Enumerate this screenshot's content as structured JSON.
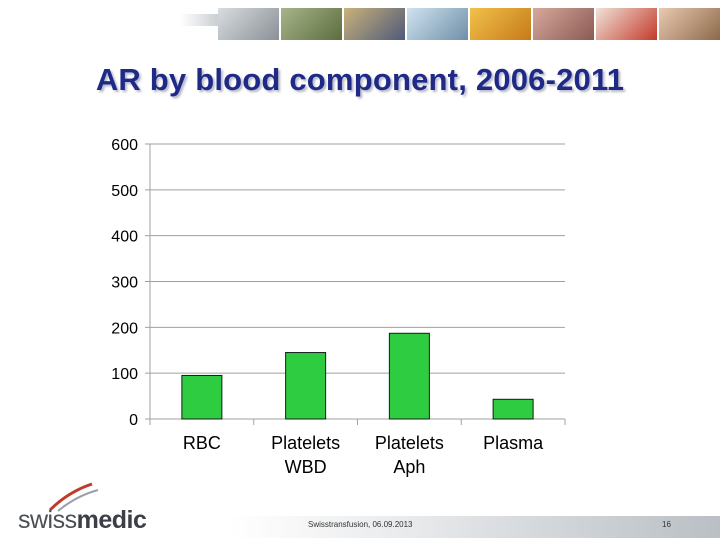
{
  "slide": {
    "title": "AR by blood component, 2006-2011",
    "footer": "Swisstransfusion, 06.09.2013",
    "page_number": "16",
    "logo_text_light": "swiss",
    "logo_text_bold": "medic"
  },
  "colors": {
    "title": "#1f2a86",
    "bar": "#2ecc40",
    "bar_stroke": "#1a1a1a",
    "grid": "#a0a0a0"
  },
  "header_photos": [
    "lab-icon",
    "people-field-icon",
    "vials-icon",
    "family-icon",
    "pills-icon",
    "medical-icon",
    "syringe-icon",
    "child-icon"
  ],
  "chart_data": {
    "type": "bar",
    "title": "",
    "xlabel": "",
    "ylabel": "",
    "categories": [
      [
        "RBC"
      ],
      [
        "Platelets",
        "WBD"
      ],
      [
        "Platelets",
        "Aph"
      ],
      [
        "Plasma"
      ]
    ],
    "values": [
      95,
      145,
      187,
      43
    ],
    "ylim": [
      0,
      600
    ],
    "yticks": [
      0,
      100,
      200,
      300,
      400,
      500,
      600
    ],
    "grid": true,
    "legend": "none"
  }
}
